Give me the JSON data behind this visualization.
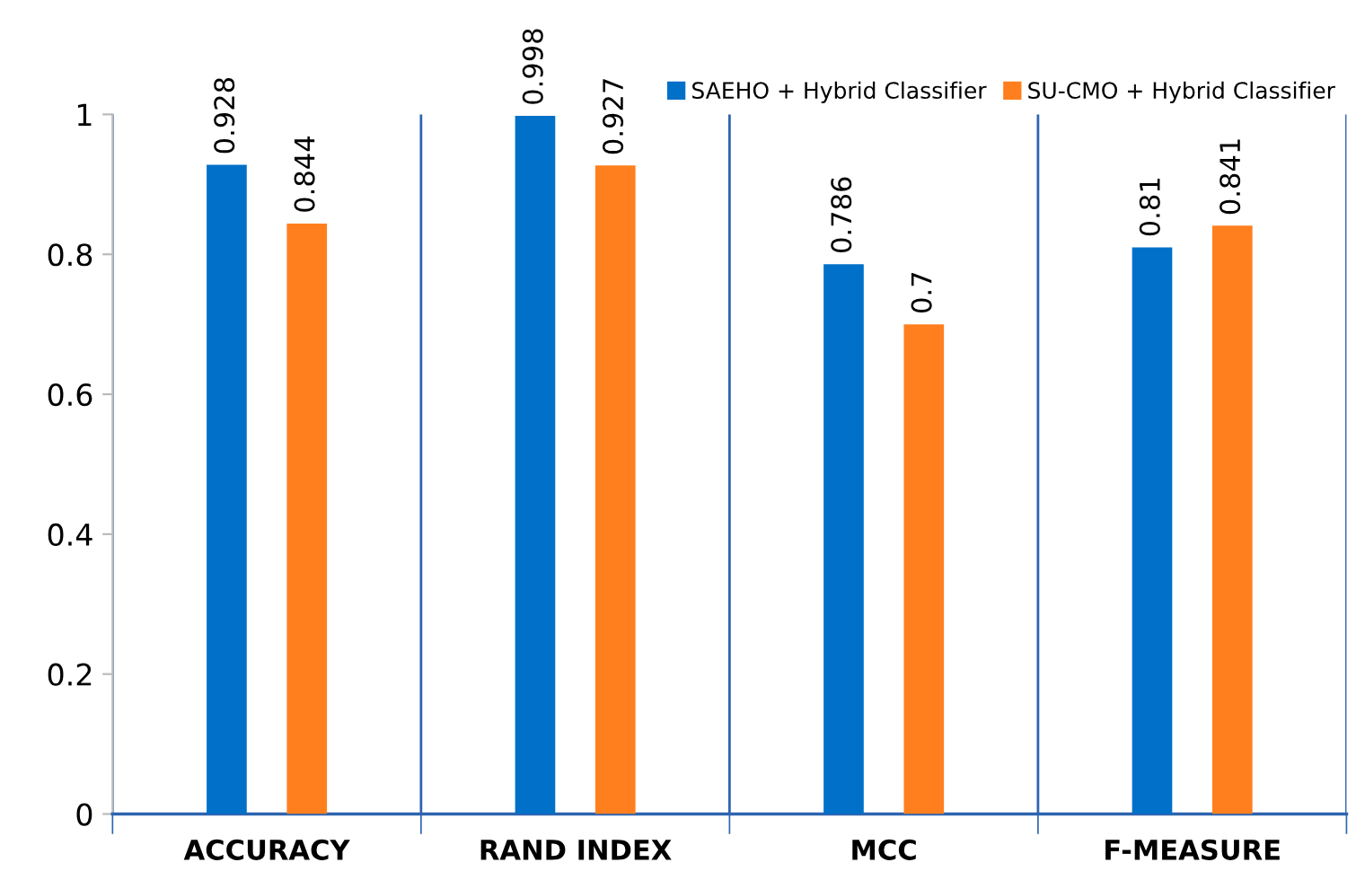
{
  "chart_data": {
    "type": "bar",
    "categories": [
      "ACCURACY",
      "RAND INDEX",
      "MCC",
      "F-MEASURE"
    ],
    "series": [
      {
        "name": "SAEHO + Hybrid Classifier",
        "color": "#0070c8",
        "values": [
          0.928,
          0.998,
          0.786,
          0.81
        ]
      },
      {
        "name": "SU-CMO + Hybrid Classifier",
        "color": "#ff7f1e",
        "values": [
          0.844,
          0.927,
          0.7,
          0.841
        ]
      }
    ],
    "ylim": [
      0,
      1
    ],
    "yticks": [
      0,
      0.2,
      0.4,
      0.6,
      0.8,
      1
    ],
    "data_labels": true,
    "grid": "x",
    "legend": "top right"
  }
}
